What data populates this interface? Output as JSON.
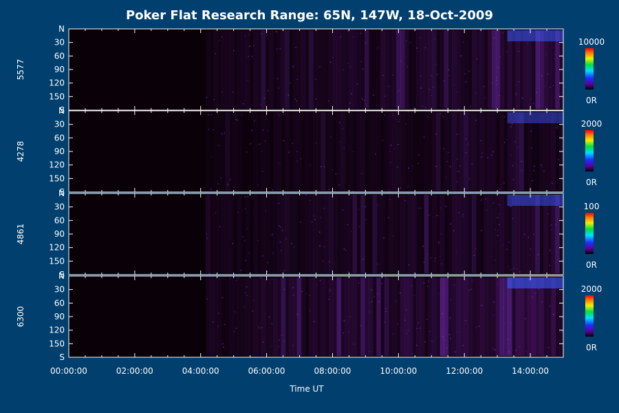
{
  "chart_data": {
    "type": "heatmap",
    "title": "Poker Flat Research Range: 65N, 147W, 18-Oct-2009",
    "xlabel": "Time UT",
    "x_ticks": [
      "00:00:00",
      "02:00:00",
      "04:00:00",
      "06:00:00",
      "08:00:00",
      "10:00:00",
      "12:00:00",
      "14:00:00"
    ],
    "x_range_hours": [
      0,
      15
    ],
    "y_ticks": [
      "N",
      "30",
      "60",
      "90",
      "120",
      "150",
      "S"
    ],
    "y_range_deg": [
      0,
      180
    ],
    "panels": [
      {
        "label": "5577",
        "colorbar_max": "10000",
        "colorbar_min": "0R",
        "data_start_hour": 4.15,
        "intensity": 0.55
      },
      {
        "label": "4278",
        "colorbar_max": "2000",
        "colorbar_min": "0R",
        "data_start_hour": 4.15,
        "intensity": 0.35
      },
      {
        "label": "4861",
        "colorbar_max": "100",
        "colorbar_min": "0R",
        "data_start_hour": 4.15,
        "intensity": 0.45
      },
      {
        "label": "6300",
        "colorbar_max": "2000",
        "colorbar_min": "0R",
        "data_start_hour": 4.15,
        "intensity": 0.75
      }
    ],
    "colors": {
      "background": "#003f6e",
      "panel_fill": "#0a0008",
      "aurora_base": "#4a1466",
      "aurora_bright": "#7a2fc0",
      "aurora_peak": "#3a5cff",
      "axis": "#ffffff"
    }
  }
}
